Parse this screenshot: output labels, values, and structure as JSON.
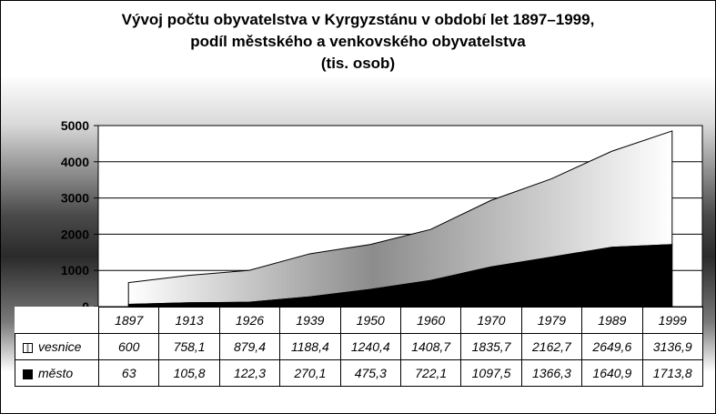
{
  "chart_data": {
    "type": "area",
    "stacked": true,
    "title_lines": [
      "Vývoj počtu obyvatelstva v Kyrgyzstánu v období let 1897–1999,",
      "podíl městského a venkovského obyvatelstva",
      "(tis. osob)"
    ],
    "categories": [
      "1897",
      "1913",
      "1926",
      "1939",
      "1950",
      "1960",
      "1970",
      "1979",
      "1989",
      "1999"
    ],
    "series": [
      {
        "name": "vesnice",
        "values": [
          600,
          758.1,
          879.4,
          1188.4,
          1240.4,
          1408.7,
          1835.7,
          2162.7,
          2649.6,
          3136.9
        ],
        "labels": [
          "600",
          "758,1",
          "879,4",
          "1188,4",
          "1240,4",
          "1408,7",
          "1835,7",
          "2162,7",
          "2649,6",
          "3136,9"
        ]
      },
      {
        "name": "město",
        "values": [
          63,
          105.8,
          122.3,
          270.1,
          475.3,
          722.1,
          1097.5,
          1366.3,
          1640.9,
          1713.8
        ],
        "labels": [
          "63",
          "105,8",
          "122,3",
          "270,1",
          "475,3",
          "722,1",
          "1097,5",
          "1366,3",
          "1640,9",
          "1713,8"
        ]
      }
    ],
    "y_ticks": [
      "0",
      "1000",
      "2000",
      "3000",
      "4000",
      "5000"
    ],
    "ylim": [
      0,
      5000
    ],
    "grid": true,
    "legend": "data-table"
  }
}
